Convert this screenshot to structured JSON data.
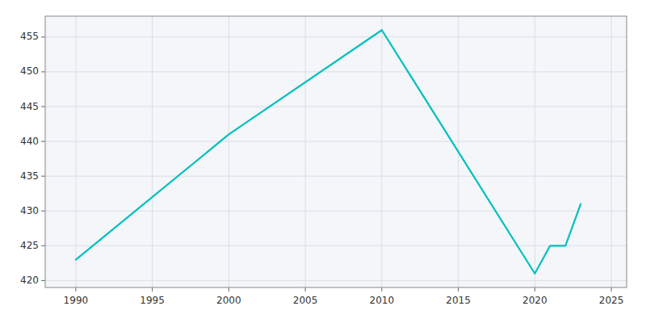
{
  "chart_data": {
    "type": "line",
    "x": [
      1990,
      2000,
      2010,
      2020,
      2021,
      2022,
      2023
    ],
    "values": [
      423,
      441,
      456,
      421,
      425,
      425,
      431
    ],
    "color": "#00c0c0",
    "xlim": [
      1988,
      2026
    ],
    "ylim": [
      419,
      458
    ],
    "xticks": [
      1990,
      1995,
      2000,
      2005,
      2010,
      2015,
      2020,
      2025
    ],
    "yticks": [
      420,
      425,
      430,
      435,
      440,
      445,
      450,
      455
    ],
    "grid": true
  }
}
